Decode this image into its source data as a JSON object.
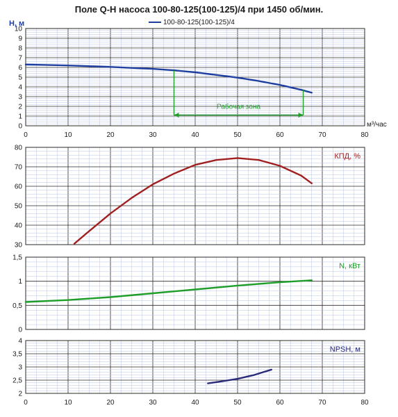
{
  "title": "Поле Q-H насоса 100-80-125(100-125)/4 при 1450 об/мин.",
  "legend": {
    "label": "100-80-125(100-125)/4",
    "color": "#1f3fa0"
  },
  "x_unit": "м³/час",
  "chart_data": [
    {
      "type": "line",
      "ylabel": "H, м",
      "xlim": [
        0,
        80
      ],
      "ylim": [
        0,
        10
      ],
      "x_ticks": [
        0,
        10,
        20,
        30,
        40,
        50,
        60,
        70,
        80
      ],
      "y_ticks": [
        0,
        1,
        2,
        3,
        4,
        5,
        6,
        7,
        8,
        9,
        10
      ],
      "series": [
        {
          "name": "100-80-125(100-125)/4",
          "color": "#1f3fa0",
          "x": [
            0,
            10,
            20,
            30,
            35,
            40,
            50,
            55,
            60,
            65,
            67.5
          ],
          "y": [
            6.3,
            6.2,
            6.05,
            5.85,
            5.7,
            5.5,
            4.95,
            4.6,
            4.2,
            3.7,
            3.4
          ]
        }
      ],
      "annotation": {
        "text": "Рабочая зона",
        "x_from": 35,
        "x_to": 65.5,
        "y": 1.1,
        "color": "#1f9e2a"
      }
    },
    {
      "type": "line",
      "label": "КПД, %",
      "label_color": "#a02020",
      "xlim": [
        0,
        80
      ],
      "ylim": [
        30,
        80
      ],
      "y_ticks": [
        30,
        40,
        50,
        60,
        70,
        80
      ],
      "series": [
        {
          "color": "#a02020",
          "x": [
            11.5,
            15,
            20,
            25,
            30,
            35,
            40,
            45,
            50,
            55,
            60,
            65,
            67.5
          ],
          "y": [
            30.5,
            37,
            46,
            54,
            61,
            66.5,
            71,
            73.5,
            74.5,
            73.5,
            70.5,
            65.5,
            61.5
          ]
        }
      ]
    },
    {
      "type": "line",
      "label": "N, кВт",
      "label_color": "#1f9e2a",
      "xlim": [
        0,
        80
      ],
      "ylim": [
        0,
        1.5
      ],
      "y_ticks": [
        0,
        0.5,
        1,
        1.5
      ],
      "y_tick_labels": [
        "0",
        "0,5",
        "1",
        "1,5"
      ],
      "series": [
        {
          "color": "#1f9e2a",
          "x": [
            0,
            10,
            20,
            30,
            40,
            50,
            60,
            67.5
          ],
          "y": [
            0.57,
            0.61,
            0.67,
            0.75,
            0.83,
            0.91,
            0.98,
            1.02
          ]
        }
      ]
    },
    {
      "type": "line",
      "label": "NPSH, м",
      "label_color": "#2a2a7a",
      "xlim": [
        0,
        80
      ],
      "ylim": [
        2,
        4
      ],
      "x_ticks": [
        0,
        10,
        20,
        30,
        40,
        50,
        60,
        70,
        80
      ],
      "y_ticks": [
        2,
        2.5,
        3,
        3.5,
        4
      ],
      "y_tick_labels": [
        "2",
        "2,5",
        "3",
        "3,5",
        "4"
      ],
      "series": [
        {
          "color": "#2a2a7a",
          "x": [
            43,
            46,
            50,
            54,
            58
          ],
          "y": [
            2.38,
            2.45,
            2.55,
            2.7,
            2.9
          ]
        }
      ]
    }
  ]
}
